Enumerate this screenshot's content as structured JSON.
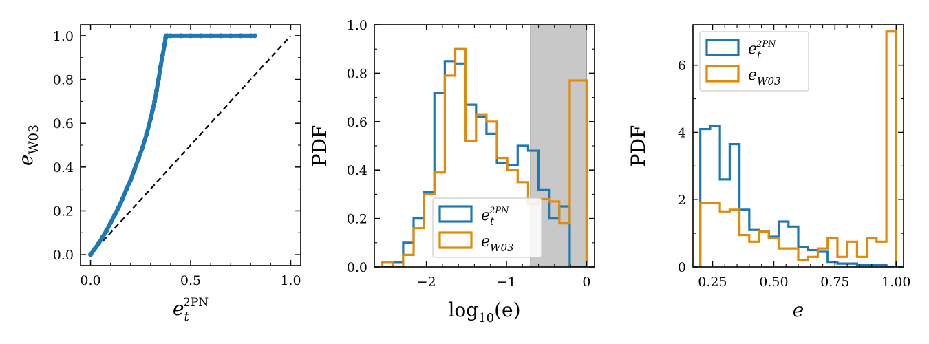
{
  "colors": {
    "blue": "#1f77b4",
    "orange": "#e08a0b",
    "dashed": "#000000",
    "shade": "#c8c8c8"
  },
  "chart_data": [
    {
      "type": "scatter",
      "xlabel": {
        "base": "e",
        "sub": "t",
        "sup": "2PN"
      },
      "ylabel": {
        "base": "e",
        "sub": "W03"
      },
      "xlim": [
        -0.05,
        1.05
      ],
      "ylim": [
        -0.05,
        1.05
      ],
      "xticks": [
        0.0,
        0.5,
        1.0
      ],
      "xtick_labels": [
        "0.0",
        "0.5",
        "1.0"
      ],
      "yticks": [
        0.0,
        0.2,
        0.4,
        0.6,
        0.8,
        1.0
      ],
      "ytick_labels": [
        "0.0",
        "0.2",
        "0.4",
        "0.6",
        "0.8",
        "1.0"
      ],
      "reference_line": {
        "style": "dashed",
        "x": [
          0,
          1
        ],
        "y": [
          0,
          1
        ]
      },
      "series": [
        {
          "color": "blue",
          "x": [
            0.0,
            0.02,
            0.04,
            0.06,
            0.08,
            0.1,
            0.12,
            0.14,
            0.16,
            0.18,
            0.2,
            0.22,
            0.24,
            0.26,
            0.28,
            0.3,
            0.31,
            0.32,
            0.33,
            0.34,
            0.35,
            0.36,
            0.37,
            0.375,
            0.38,
            0.4,
            0.45,
            0.5,
            0.55,
            0.6,
            0.65,
            0.7,
            0.75,
            0.8,
            0.82
          ],
          "y": [
            0.0,
            0.025,
            0.05,
            0.08,
            0.11,
            0.145,
            0.18,
            0.215,
            0.255,
            0.3,
            0.34,
            0.39,
            0.44,
            0.49,
            0.55,
            0.62,
            0.66,
            0.7,
            0.75,
            0.8,
            0.86,
            0.91,
            0.96,
            0.99,
            1.0,
            1.0,
            1.0,
            1.0,
            1.0,
            1.0,
            1.0,
            1.0,
            1.0,
            1.0,
            1.0
          ]
        }
      ]
    },
    {
      "type": "histogram",
      "xlabel": {
        "text": "log",
        "sub": "10",
        "suffix": "(e)"
      },
      "ylabel": {
        "text": "PDF"
      },
      "xlim": [
        -2.65,
        0.1
      ],
      "ylim": [
        0,
        1.0
      ],
      "xticks": [
        -2,
        -1,
        0
      ],
      "xtick_labels": [
        "−2",
        "−1",
        "0"
      ],
      "yticks": [
        0.0,
        0.2,
        0.4,
        0.6,
        0.8,
        1.0
      ],
      "ytick_labels": [
        "0.0",
        "0.2",
        "0.4",
        "0.6",
        "0.8",
        "1.0"
      ],
      "shaded_region": [
        -0.7,
        0.0
      ],
      "bin_edges": [
        -2.55,
        -2.42,
        -2.29,
        -2.16,
        -2.03,
        -1.9,
        -1.77,
        -1.64,
        -1.51,
        -1.38,
        -1.25,
        -1.12,
        -0.99,
        -0.86,
        -0.73,
        -0.6,
        -0.47,
        -0.34,
        -0.21,
        -0.08,
        0.0
      ],
      "legend": {
        "position": "lower-center",
        "entries": [
          {
            "base": "e",
            "sub": "t",
            "sup": "2PN",
            "color": "blue"
          },
          {
            "base": "e",
            "sub": "W03",
            "color": "orange"
          }
        ]
      },
      "series": [
        {
          "color": "blue",
          "values": [
            0.0,
            0.02,
            0.1,
            0.2,
            0.31,
            0.72,
            0.85,
            0.84,
            0.67,
            0.62,
            0.55,
            0.43,
            0.42,
            0.5,
            0.48,
            0.32,
            0.2,
            0.25,
            0.0,
            0.0
          ]
        },
        {
          "color": "orange",
          "values": [
            0.02,
            0.0,
            0.05,
            0.16,
            0.3,
            0.39,
            0.79,
            0.9,
            0.52,
            0.63,
            0.6,
            0.45,
            0.4,
            0.35,
            0.26,
            0.28,
            0.27,
            0.18,
            0.77,
            0.77
          ]
        }
      ]
    },
    {
      "type": "histogram",
      "xlabel": {
        "base": "e"
      },
      "ylabel": {
        "text": "PDF"
      },
      "xlim": [
        0.17,
        1.03
      ],
      "ylim": [
        0,
        7.2
      ],
      "xticks": [
        0.25,
        0.5,
        0.75,
        1.0
      ],
      "xtick_labels": [
        "0.25",
        "0.50",
        "0.75",
        "1.00"
      ],
      "yticks": [
        0,
        2,
        4,
        6
      ],
      "ytick_labels": [
        "0",
        "2",
        "4",
        "6"
      ],
      "bin_edges": [
        0.2,
        0.24,
        0.28,
        0.32,
        0.36,
        0.4,
        0.44,
        0.48,
        0.52,
        0.56,
        0.6,
        0.64,
        0.68,
        0.72,
        0.76,
        0.8,
        0.84,
        0.88,
        0.92,
        0.96,
        1.0
      ],
      "legend": {
        "position": "upper-left",
        "entries": [
          {
            "base": "e",
            "sub": "t",
            "sup": "2PN",
            "color": "blue"
          },
          {
            "base": "e",
            "sub": "W03",
            "color": "orange"
          }
        ]
      },
      "series": [
        {
          "color": "blue",
          "values": [
            4.1,
            4.2,
            2.6,
            3.65,
            1.7,
            1.1,
            1.05,
            0.9,
            1.35,
            1.2,
            0.6,
            0.5,
            0.45,
            0.15,
            0.1,
            0.1,
            0.05,
            0.05,
            0.05,
            0.0
          ]
        },
        {
          "color": "orange",
          "values": [
            1.9,
            1.9,
            1.65,
            1.7,
            0.95,
            0.75,
            1.05,
            0.85,
            0.55,
            0.55,
            0.2,
            0.3,
            0.55,
            0.85,
            0.3,
            0.75,
            0.3,
            0.85,
            0.75,
            7.0
          ]
        }
      ]
    }
  ]
}
